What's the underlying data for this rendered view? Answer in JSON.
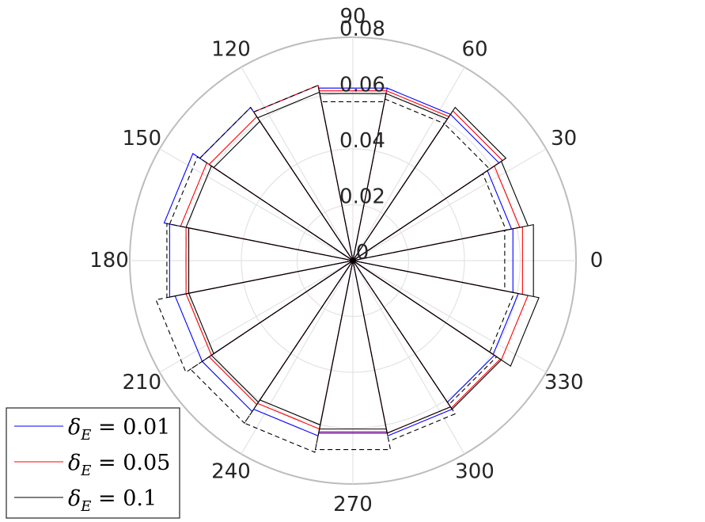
{
  "chart_data": {
    "type": "polar",
    "theta_unit": "degrees",
    "theta_ticks": [
      0,
      30,
      60,
      90,
      120,
      150,
      180,
      210,
      240,
      270,
      300,
      330
    ],
    "r_ticks": [
      0,
      0.02,
      0.04,
      0.06,
      0.08
    ],
    "r_tick_labels": [
      "0",
      "0.02",
      "0.04",
      "0.06",
      "0.08"
    ],
    "rlim": [
      0,
      0.08
    ],
    "grid": true,
    "legend_position": "bottom-left",
    "bin_edges_deg": [
      -11.25,
      11.25,
      33.75,
      56.25,
      78.75,
      101.25,
      123.75,
      146.25,
      168.75,
      191.25,
      213.75,
      236.25,
      258.75,
      281.25,
      303.75,
      326.25,
      348.75
    ],
    "series": [
      {
        "name": "δE = 0.01",
        "legend_sub": "E",
        "legend_rest": " = 0.01",
        "color": "#0000ff",
        "dash": "none",
        "values": [
          0.0585,
          0.058,
          0.063,
          0.063,
          0.063,
          0.064,
          0.066,
          0.069,
          0.067,
          0.065,
          0.065,
          0.064,
          0.063,
          0.064,
          0.061,
          0.0605
        ]
      },
      {
        "name": "δE = 0.05",
        "legend_sub": "E",
        "legend_rest": " = 0.05",
        "color": "#ff0000",
        "dash": "none",
        "values": [
          0.062,
          0.061,
          0.0645,
          0.062,
          0.062,
          0.064,
          0.062,
          0.063,
          0.061,
          0.061,
          0.062,
          0.0615,
          0.0625,
          0.063,
          0.0635,
          0.064
        ]
      },
      {
        "name": "δE = 0.1",
        "legend_sub": "E",
        "legend_rest": " = 0.1",
        "color": "#000000",
        "dash": "none",
        "values": [
          0.066,
          0.064,
          0.066,
          0.061,
          0.061,
          0.0615,
          0.06,
          0.061,
          0.06,
          0.06,
          0.061,
          0.06,
          0.0615,
          0.063,
          0.064,
          0.068
        ]
      },
      {
        "name": "",
        "color": "#000000",
        "dash": "6,4",
        "values": [
          0.0555,
          0.056,
          0.059,
          0.059,
          0.058,
          0.064,
          0.066,
          0.067,
          0.068,
          0.072,
          0.07,
          0.07,
          0.069,
          0.066,
          0.062,
          0.059
        ]
      }
    ]
  }
}
